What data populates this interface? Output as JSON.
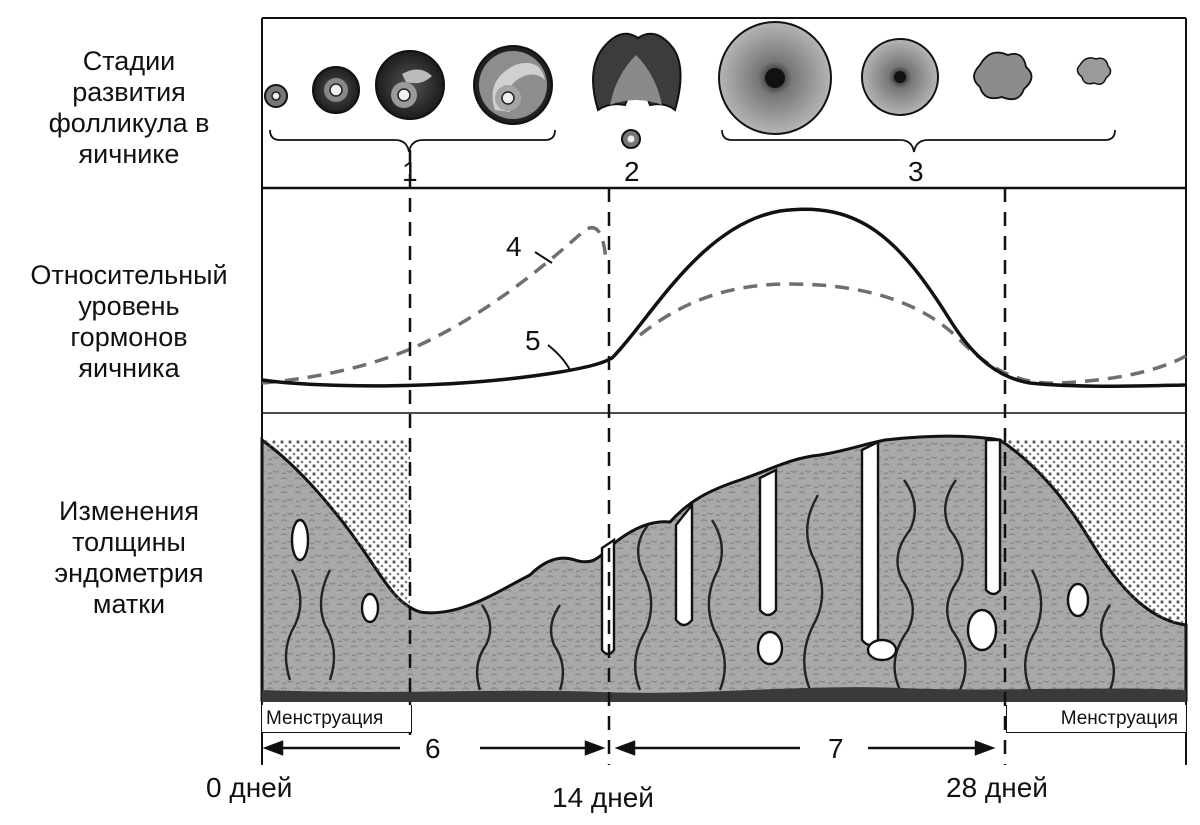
{
  "labels": {
    "follicle_stages": "Стадии\nразвития\nфолликула в\nяичнике",
    "hormone_level": "Относительный\nуровень\nгормонов\nяичника",
    "endometrium": "Изменения\nтолщины\nэндометрия\nматки"
  },
  "markers": {
    "m1": "1",
    "m2": "2",
    "m3": "3",
    "m4": "4",
    "m5": "5",
    "m6": "6",
    "m7": "7"
  },
  "menstruation": {
    "left": "Менструация",
    "right": "Менструация"
  },
  "time_axis": {
    "t0": "0 дней",
    "t14": "14 дней",
    "t28": "28 дней"
  },
  "colors": {
    "ink": "#111111",
    "dashed_curve": "#6f6f6f",
    "tissue": "#a8a8a8",
    "tissue_dark": "#5a5a5a",
    "follicle_dark": "#2a2a2a"
  }
}
